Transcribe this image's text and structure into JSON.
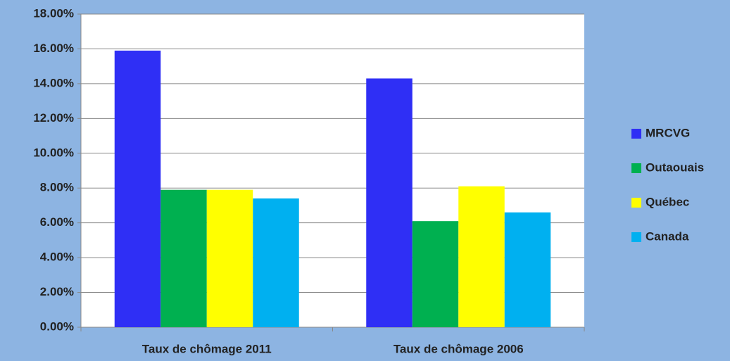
{
  "chart_data": {
    "type": "bar",
    "categories": [
      "Taux de chômage 2011",
      "Taux de chômage 2006"
    ],
    "series": [
      {
        "name": "MRCVG",
        "color": "#2f2ff5",
        "values": [
          15.9,
          14.3
        ]
      },
      {
        "name": "Outaouais",
        "color": "#00b050",
        "values": [
          7.9,
          6.1
        ]
      },
      {
        "name": "Québec",
        "color": "#ffff00",
        "values": [
          7.9,
          8.1
        ]
      },
      {
        "name": "Canada",
        "color": "#00b0f0",
        "values": [
          7.4,
          6.6
        ]
      }
    ],
    "ylim": [
      0,
      18
    ],
    "yticks": [
      {
        "value": 0,
        "label": "0.00%"
      },
      {
        "value": 2,
        "label": "2.00%"
      },
      {
        "value": 4,
        "label": "4.00%"
      },
      {
        "value": 6,
        "label": "6.00%"
      },
      {
        "value": 8,
        "label": "8.00%"
      },
      {
        "value": 10,
        "label": "10.00%"
      },
      {
        "value": 12,
        "label": "12.00%"
      },
      {
        "value": 14,
        "label": "14.00%"
      },
      {
        "value": 16,
        "label": "16.00%"
      },
      {
        "value": 18,
        "label": "18.00%"
      }
    ],
    "grid": true,
    "legend": "right"
  }
}
